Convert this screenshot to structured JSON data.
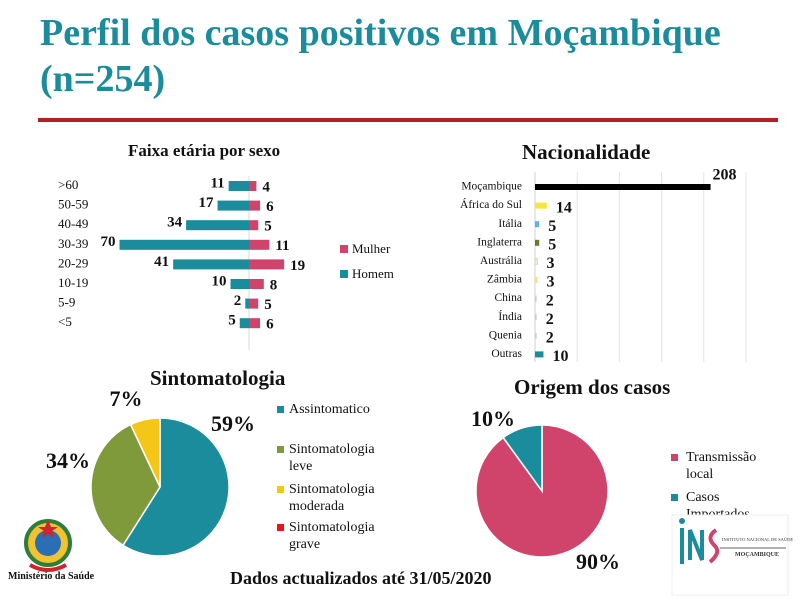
{
  "page": {
    "title": "Perfil dos casos positivos em Moçambique (n=254)",
    "footer": "Dados actualizados até 31/05/2020",
    "ministry": "Ministério da Saúde",
    "ins_logo_text": "INSTITUTO NACIONAL DE SAÚDE",
    "ins_logo_sub": "MOÇAMBIQUE"
  },
  "colors": {
    "title": "#1a8c9c",
    "rule": "#b32025",
    "mulher": "#d0436b",
    "homem": "#1a8c9c",
    "black": "#000000",
    "yellow": "#f5e63a",
    "teal": "#1a8c9c",
    "olive": "#7f9a3a",
    "amber": "#f5c518",
    "red": "#e8141c"
  },
  "chart_data": [
    {
      "id": "age",
      "type": "bar",
      "orientation": "horizontal",
      "title": "Faixa etária por sexo",
      "categories": [
        ">60",
        "50-59",
        "40-49",
        "30-39",
        "20-29",
        "10-19",
        "5-9",
        "<5"
      ],
      "series": [
        {
          "name": "Mulher",
          "color": "#d0436b",
          "values": [
            4,
            6,
            5,
            11,
            19,
            8,
            5,
            6
          ]
        },
        {
          "name": "Homem",
          "color": "#1a8c9c",
          "values": [
            11,
            17,
            34,
            70,
            41,
            10,
            2,
            5
          ]
        }
      ],
      "legend": "right"
    },
    {
      "id": "nationality",
      "type": "bar",
      "orientation": "horizontal",
      "title": "Nacionalidade",
      "categories": [
        "Moçambique",
        "África do Sul",
        "Itália",
        "Inglaterra",
        "Austrália",
        "Zâmbia",
        "China",
        "Índia",
        "Quenia",
        "Outras"
      ],
      "values": [
        208,
        14,
        5,
        5,
        3,
        3,
        2,
        2,
        2,
        10
      ],
      "colors": [
        "#000000",
        "#f5e63a",
        "#5fb3e0",
        "#6b7a2a",
        "#f2ead0",
        "#f7e27a",
        "#cccccc",
        "#cccccc",
        "#cccccc",
        "#1a8c9c"
      ],
      "xlim": [
        0,
        250
      ],
      "grid": true
    },
    {
      "id": "symptoms",
      "type": "pie",
      "title": "Sintomatologia",
      "labels": [
        "Assintomatico",
        "Sintomatologia leve",
        "Sintomatologia moderada",
        "Sintomatologia grave"
      ],
      "values": [
        59,
        34,
        7,
        0
      ],
      "display_labels": [
        "59%",
        "34%",
        "7%",
        ""
      ],
      "colors": [
        "#1a8c9c",
        "#7f9a3a",
        "#f5c518",
        "#e8141c"
      ],
      "legend": "right"
    },
    {
      "id": "origin",
      "type": "pie",
      "title": "Origem dos casos",
      "labels": [
        "Transmissão local",
        "Casos Importados"
      ],
      "values": [
        90,
        10
      ],
      "display_labels": [
        "90%",
        "10%"
      ],
      "colors": [
        "#d0436b",
        "#1a8c9c"
      ],
      "legend": "right"
    }
  ]
}
